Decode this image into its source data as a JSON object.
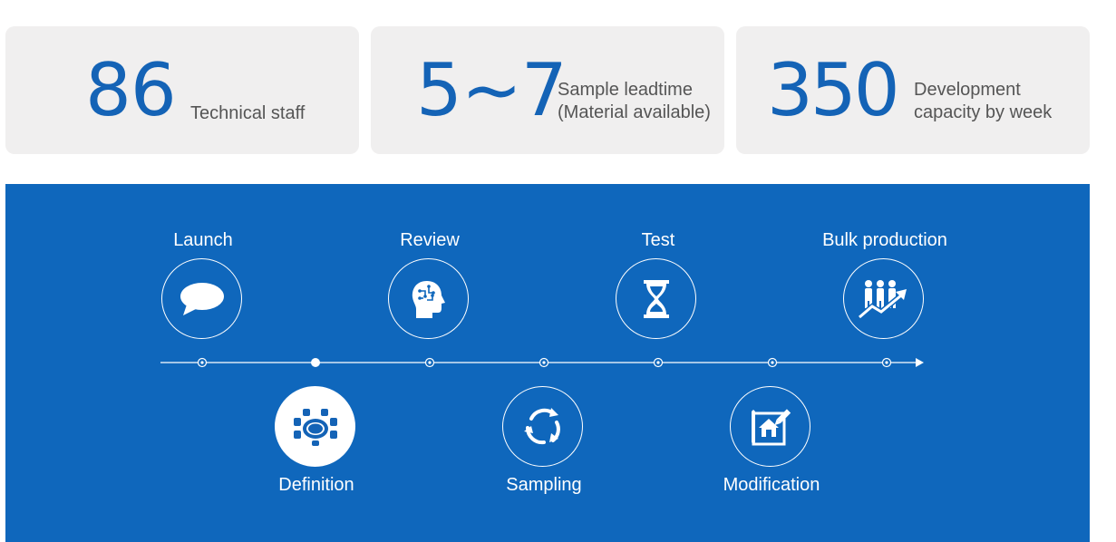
{
  "stats": [
    {
      "number": "86",
      "label_line1": "Technical staff",
      "label_line2": ""
    },
    {
      "number": "5~7",
      "label_line1": "Sample leadtime",
      "label_line2": "(Material available)"
    },
    {
      "number": "350",
      "label_line1": "Development",
      "label_line2": "capacity by week"
    }
  ],
  "process": {
    "steps": [
      {
        "label": "Launch",
        "icon": "speech-bubble-icon"
      },
      {
        "label": "Definition",
        "icon": "meeting-table-icon"
      },
      {
        "label": "Review",
        "icon": "brain-head-icon"
      },
      {
        "label": "Sampling",
        "icon": "refresh-cycle-icon"
      },
      {
        "label": "Test",
        "icon": "hourglass-icon"
      },
      {
        "label": "Modification",
        "icon": "blueprint-edit-icon"
      },
      {
        "label": "Bulk production",
        "icon": "growth-team-icon"
      }
    ]
  },
  "colors": {
    "accent": "#1463b6",
    "panel": "#0f67bc",
    "card": "#f0efef"
  }
}
